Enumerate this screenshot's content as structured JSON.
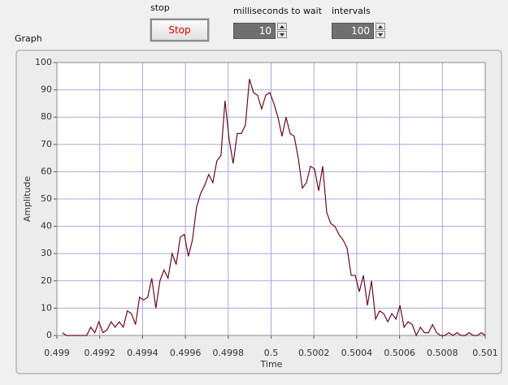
{
  "controls": {
    "stop_label": "stop",
    "stop_button": "Stop",
    "wait_label": "milliseconds to wait",
    "wait_value": 10,
    "intervals_label": "intervals",
    "intervals_value": 100
  },
  "graph_label": "Graph",
  "chart_data": {
    "type": "line",
    "x_label": "Time",
    "y_label": "Amplitude",
    "color": "#6e0a1e",
    "grid": true,
    "xlim": [
      0.499,
      0.501
    ],
    "xticks": [
      0.499,
      0.4992,
      0.4994,
      0.4996,
      0.4998,
      0.5,
      0.5002,
      0.5004,
      0.5006,
      0.5008,
      0.501
    ],
    "ylim": [
      0,
      100
    ],
    "yticks": [
      0,
      10,
      20,
      30,
      40,
      50,
      60,
      70,
      80,
      90,
      100
    ],
    "x": [
      0.499025,
      0.499044,
      0.499063,
      0.499082,
      0.499101,
      0.49912,
      0.499139,
      0.499158,
      0.499177,
      0.499196,
      0.499215,
      0.499234,
      0.499253,
      0.499272,
      0.499291,
      0.49931,
      0.499329,
      0.499348,
      0.499367,
      0.499386,
      0.499405,
      0.499424,
      0.499443,
      0.499462,
      0.499481,
      0.4995,
      0.499519,
      0.499538,
      0.499557,
      0.499576,
      0.499595,
      0.499614,
      0.499633,
      0.499652,
      0.499671,
      0.49969,
      0.499709,
      0.499728,
      0.499747,
      0.499766,
      0.499785,
      0.499804,
      0.499823,
      0.499842,
      0.499861,
      0.49988,
      0.499899,
      0.499918,
      0.499937,
      0.499956,
      0.499975,
      0.499994,
      0.500013,
      0.500032,
      0.500051,
      0.50007,
      0.500089,
      0.500108,
      0.500127,
      0.500146,
      0.500165,
      0.500184,
      0.500203,
      0.500222,
      0.500241,
      0.50026,
      0.500279,
      0.500298,
      0.500317,
      0.500336,
      0.500355,
      0.500374,
      0.500393,
      0.500412,
      0.500431,
      0.50045,
      0.500469,
      0.500488,
      0.500507,
      0.500526,
      0.500545,
      0.500564,
      0.500583,
      0.500602,
      0.500621,
      0.50064,
      0.500659,
      0.500678,
      0.500697,
      0.500716,
      0.500735,
      0.500754,
      0.500773,
      0.500792,
      0.500811,
      0.50083,
      0.500849,
      0.500868,
      0.500887,
      0.500906,
      0.500925,
      0.500944,
      0.500963,
      0.500982,
      0.501001
    ],
    "values": [
      1,
      0,
      0,
      0,
      0,
      0,
      0,
      3,
      1,
      5,
      1,
      2,
      5,
      3,
      5,
      3,
      9,
      8,
      4,
      14,
      13,
      14,
      21,
      10,
      20,
      24,
      21,
      30,
      26,
      36,
      37,
      29,
      35,
      47,
      52,
      55,
      59,
      56,
      64,
      66,
      86,
      72,
      63,
      74,
      74,
      77,
      94,
      89,
      88,
      83,
      88,
      89,
      85,
      80,
      73,
      80,
      74,
      73,
      65,
      54,
      56,
      62,
      61,
      53,
      62,
      45,
      41,
      40,
      37,
      35,
      32,
      22,
      22,
      16,
      22,
      11,
      20,
      6,
      9,
      8,
      5,
      8,
      6,
      11,
      3,
      5,
      4,
      0,
      3,
      1,
      1,
      4,
      1,
      0,
      0,
      1,
      0,
      1,
      0,
      0,
      1,
      0,
      0,
      1,
      0
    ]
  }
}
